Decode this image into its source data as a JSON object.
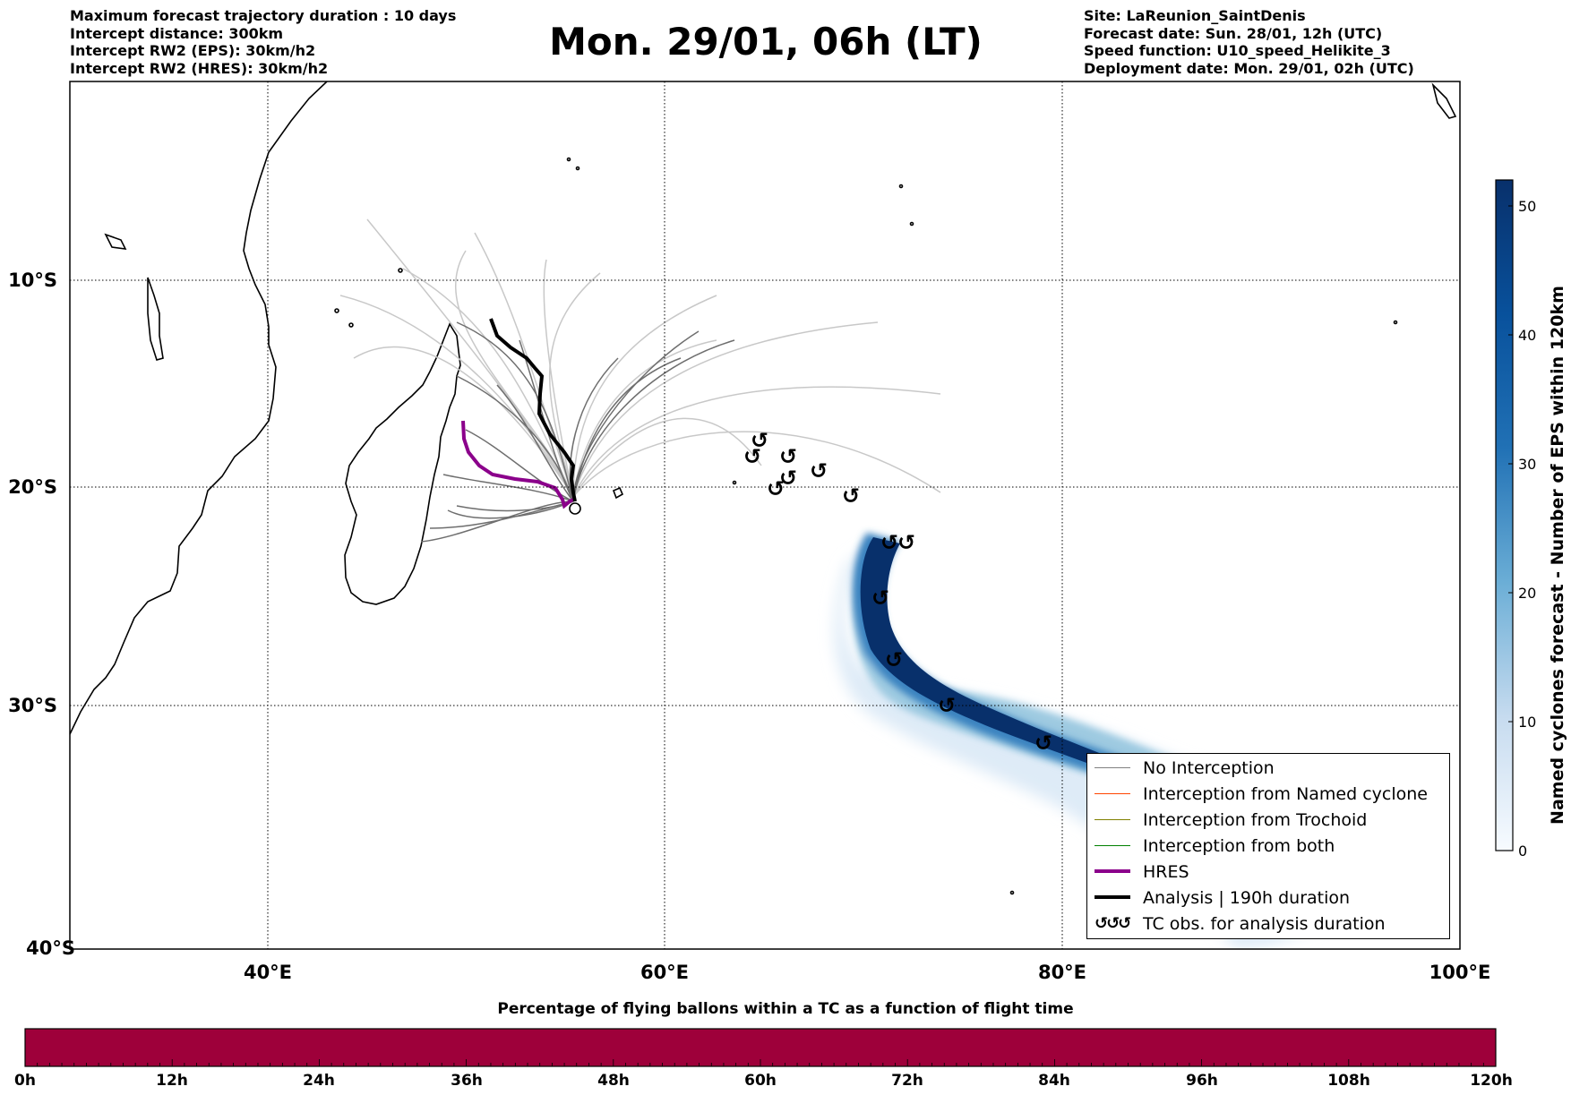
{
  "header": {
    "left_lines": [
      "Maximum forecast trajectory duration : 10 days",
      "Intercept distance: 300km",
      "Intercept RW2 (EPS):  30km/h2",
      "Intercept RW2 (HRES): 30km/h2"
    ],
    "title": "Mon. 29/01, 06h (LT)",
    "right_lines": [
      "Site: LaReunion_SaintDenis",
      "Forecast date: Sun. 28/01, 12h (UTC)",
      "Speed function: U10_speed_Helikite_3",
      "Deployment date: Mon. 29/01, 02h (UTC)"
    ]
  },
  "map": {
    "lat_labels": [
      "10°S",
      "20°S",
      "30°S",
      "40°S"
    ],
    "lon_labels": [
      "40°E",
      "60°E",
      "80°E",
      "100°E"
    ],
    "extent": {
      "lon": [
        30,
        100
      ],
      "lat": [
        -40,
        2
      ]
    },
    "colors": {
      "hres": "#8b008b",
      "analysis": "#000000",
      "eps_dark": "#6e6e6e",
      "eps_light": "#c8c8c8",
      "density": "#08306b"
    }
  },
  "legend": {
    "items": [
      {
        "label": "No Interception",
        "color": "#808080",
        "style": "thin"
      },
      {
        "label": "Interception from Named cyclone",
        "color": "#ff4500",
        "style": "thin"
      },
      {
        "label": "Interception from Trochoid",
        "color": "#808000",
        "style": "thin"
      },
      {
        "label": "Interception from both",
        "color": "#008000",
        "style": "thin"
      },
      {
        "label": "HRES",
        "color": "#8b008b",
        "style": "thick"
      },
      {
        "label": "Analysis | 190h duration",
        "color": "#000000",
        "style": "thick"
      },
      {
        "label": "TC obs. for analysis duration",
        "color": "#000000",
        "style": "symbol"
      }
    ]
  },
  "colorbar_right": {
    "label": "Named cyclones forecast - Number of EPS within 120km",
    "ticks": [
      "0",
      "10",
      "20",
      "30",
      "40",
      "50"
    ],
    "range": [
      0,
      52
    ]
  },
  "colorbar_bottom": {
    "title": "Percentage of flying ballons within a TC as a function of flight time",
    "ticks": [
      "0h",
      "12h",
      "24h",
      "36h",
      "48h",
      "60h",
      "72h",
      "84h",
      "96h",
      "108h",
      "120h"
    ],
    "fill_color": "#9e003a"
  }
}
